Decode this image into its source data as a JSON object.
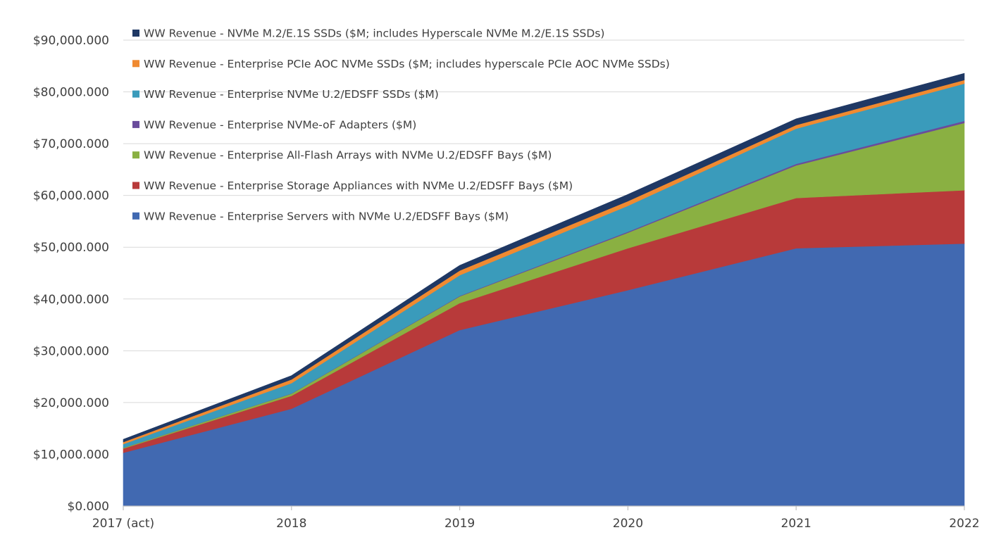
{
  "chart_data": {
    "type": "area",
    "stacked": true,
    "title": "",
    "xlabel": "",
    "ylabel": "",
    "categories": [
      "2017 (act)",
      "2018",
      "2019",
      "2020",
      "2021",
      "2022"
    ],
    "ylim": [
      0,
      90000
    ],
    "yticks": [
      0,
      10000,
      20000,
      30000,
      40000,
      50000,
      60000,
      70000,
      80000,
      90000
    ],
    "ytick_labels": [
      "$0.000",
      "$10,000.000",
      "$20,000.000",
      "$30,000.000",
      "$40,000.000",
      "$50,000.000",
      "$60,000.000",
      "$70,000.000",
      "$80,000.000",
      "$90,000.000"
    ],
    "grid": "horizontal",
    "legend_position": "top-left inside",
    "series": [
      {
        "name": "WW Revenue - Enterprise Servers with NVMe U.2/EDSFF Bays ($M)",
        "color": "#4169b1",
        "values": [
          10300,
          18800,
          34000,
          41700,
          49800,
          50700
        ]
      },
      {
        "name": "WW Revenue - Enterprise Storage Appliances with NVMe U.2/EDSFF Bays ($M)",
        "color": "#b83a3a",
        "values": [
          800,
          2500,
          5200,
          8100,
          9700,
          10300
        ]
      },
      {
        "name": "WW Revenue - Enterprise All-Flash Arrays with NVMe U.2/EDSFF Bays ($M)",
        "color": "#8ab042",
        "values": [
          150,
          400,
          1300,
          3000,
          6300,
          13000
        ]
      },
      {
        "name": "WW Revenue - Enterprise NVMe-oF Adapters ($M)",
        "color": "#6a4c9c",
        "values": [
          20,
          50,
          100,
          200,
          300,
          400
        ]
      },
      {
        "name": "WW Revenue - Enterprise NVMe U.2/EDSFF SSDs ($M)",
        "color": "#3a9bbb",
        "values": [
          700,
          2000,
          4000,
          5000,
          6800,
          7200
        ]
      },
      {
        "name": "WW Revenue - Enterprise PCIe AOC NVMe SSDs ($M; includes hyperscale PCIe AOC NVMe SSDs)",
        "color": "#f08a30",
        "values": [
          400,
          700,
          900,
          900,
          700,
          700
        ]
      },
      {
        "name": "WW Revenue - NVMe M.2/E.1S SSDs ($M; includes Hyperscale NVMe M.2/E.1S SSDs)",
        "color": "#1f3864",
        "values": [
          530,
          750,
          1000,
          1300,
          1200,
          1300
        ]
      }
    ]
  }
}
